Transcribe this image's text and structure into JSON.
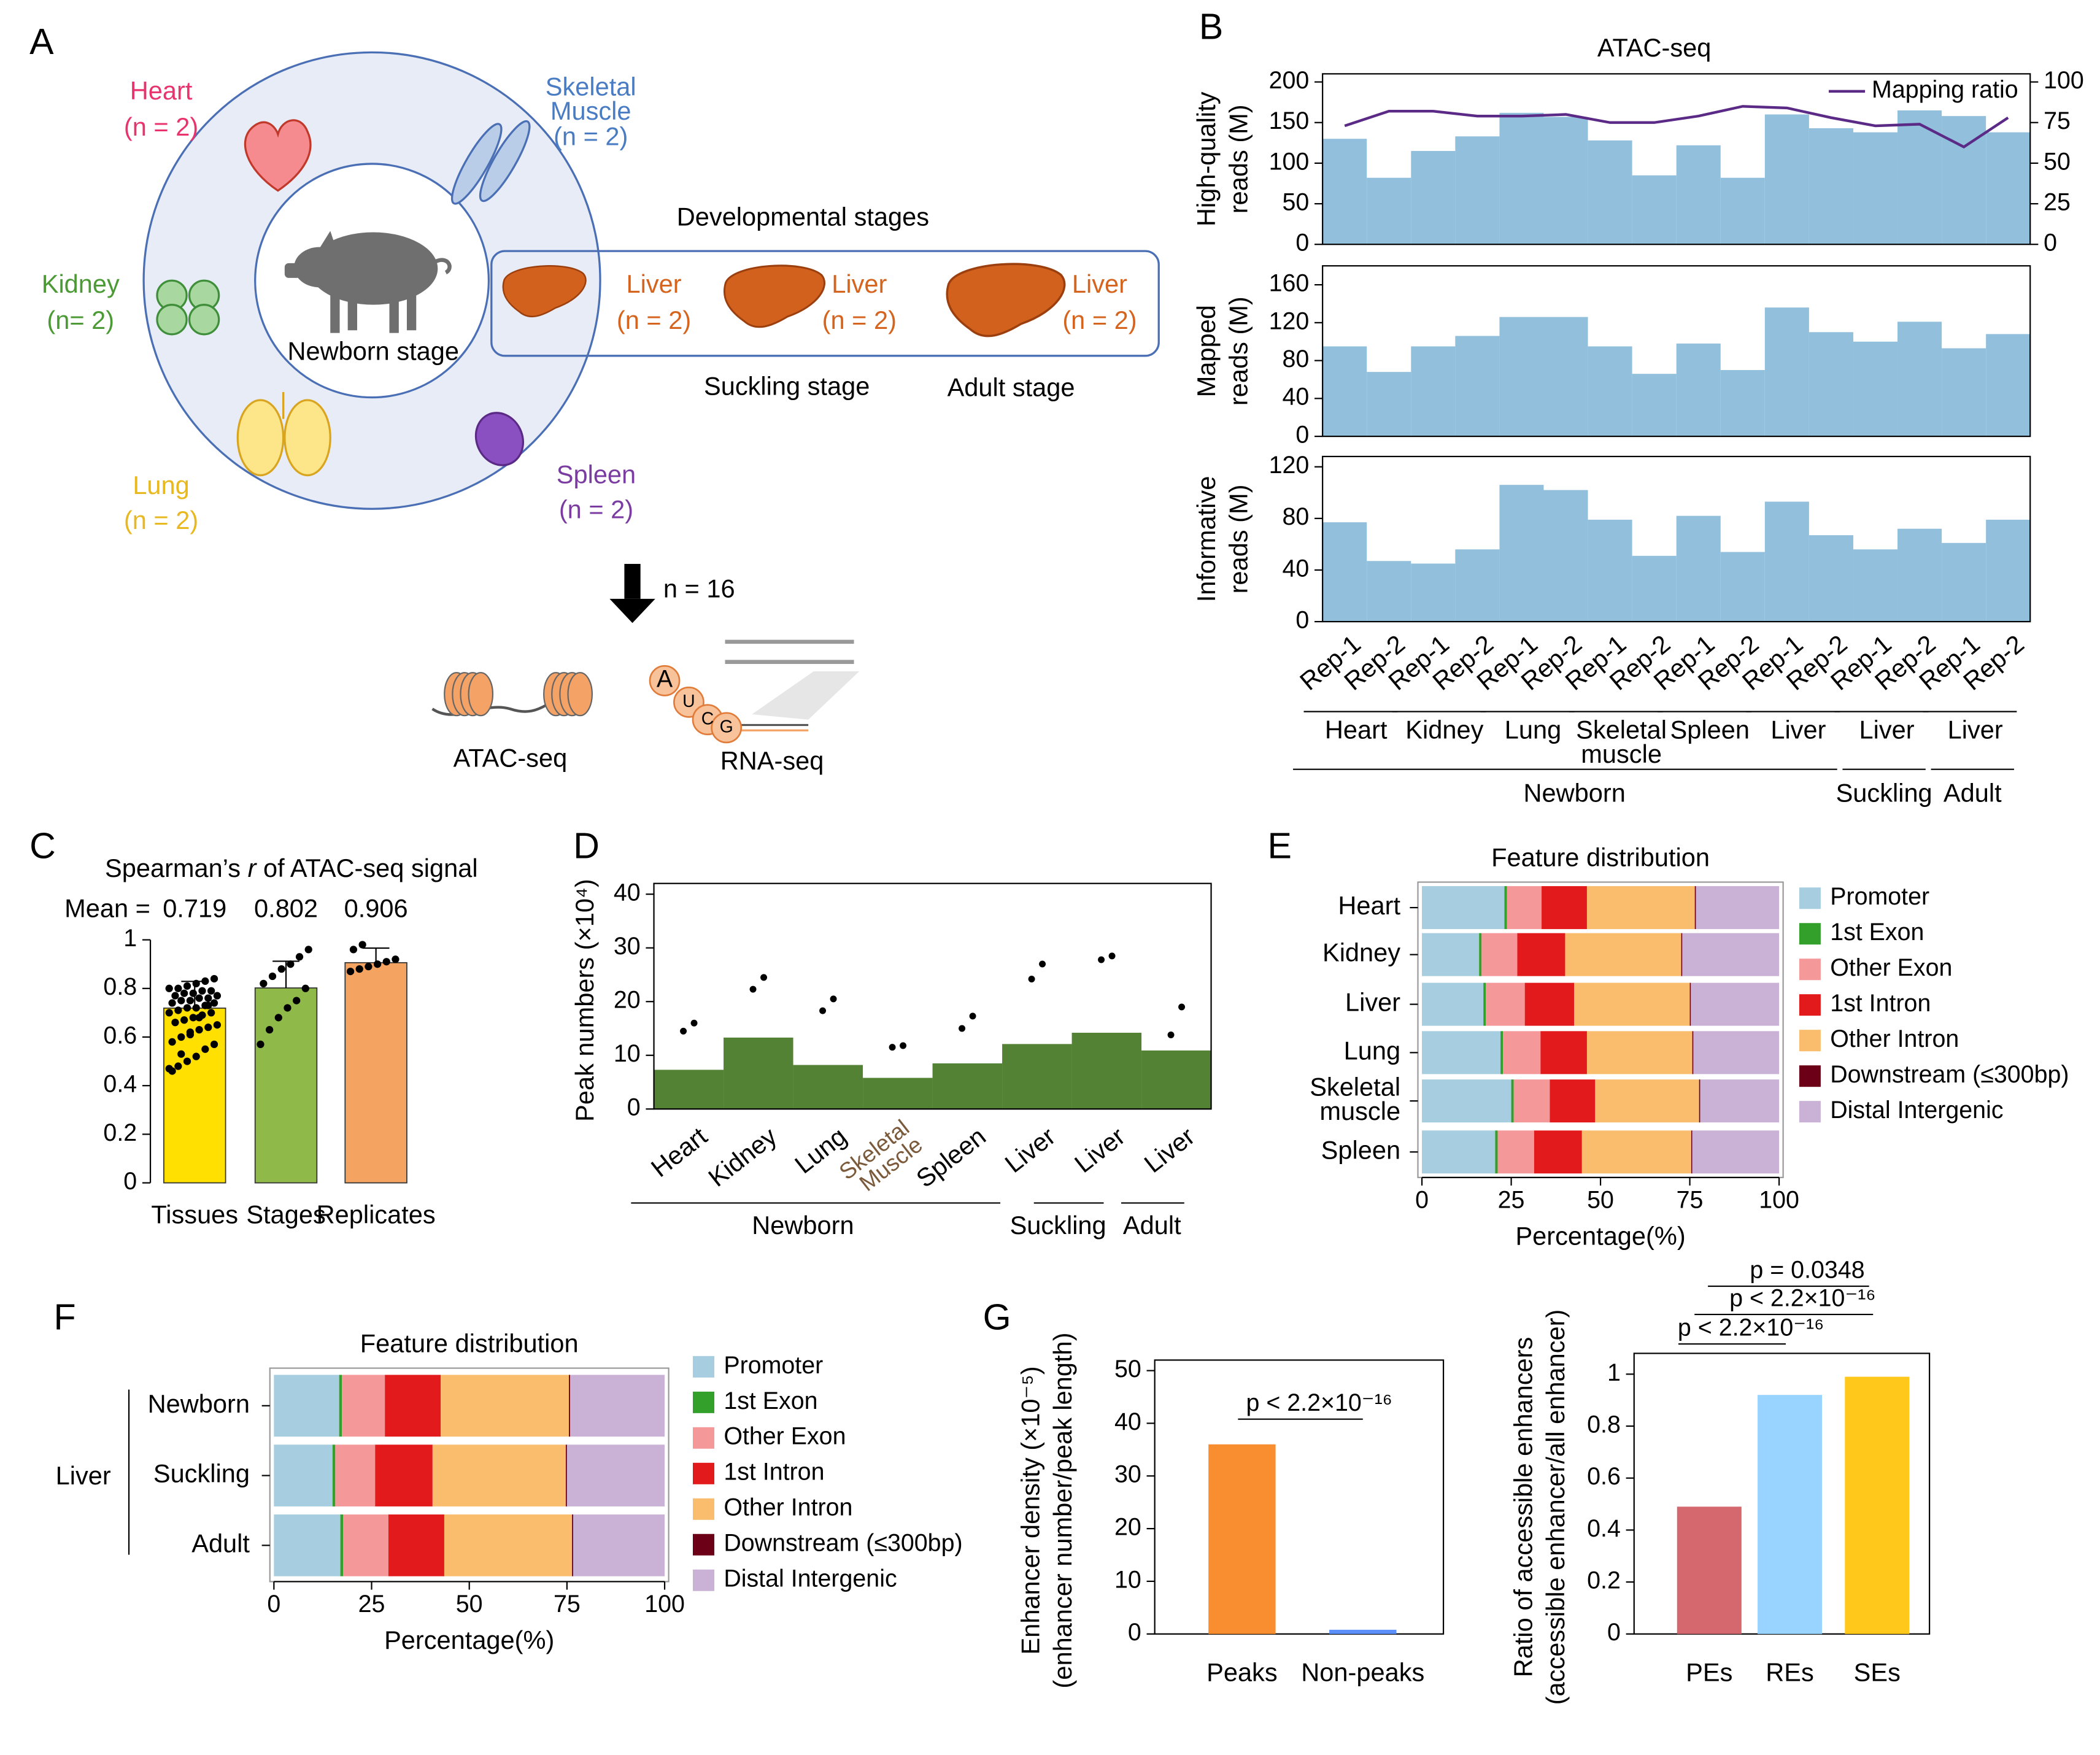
{
  "panel_labels": [
    "A",
    "B",
    "C",
    "D",
    "E",
    "F",
    "G"
  ],
  "diagram": {
    "organs": [
      {
        "name": "Heart",
        "n": "(n = 2)"
      },
      {
        "name": [
          "Skeletal",
          "Muscle"
        ],
        "n": "(n = 2)"
      },
      {
        "name": "Kidney",
        "n": "(n= 2)"
      },
      {
        "name": "Lung",
        "n": "(n = 2)"
      },
      {
        "name": "Spleen",
        "n": "(n = 2)"
      }
    ],
    "center": "Newborn stage",
    "stages_title": "Developmental stages",
    "livers": [
      {
        "name": "Liver",
        "n": "(n = 2)"
      },
      {
        "name": "Liver",
        "n": "(n = 2)"
      },
      {
        "name": "Liver",
        "n": "(n = 2)"
      }
    ],
    "stage_labels": [
      "Suckling stage",
      "Adult stage"
    ],
    "total": "n = 16",
    "assays": [
      "ATAC-seq",
      "RNA-seq"
    ],
    "nucleotides": [
      "A",
      "U",
      "C",
      "G"
    ]
  },
  "chart_data": [
    {
      "type": "bar",
      "title": "ATAC-seq",
      "categories": [
        "Rep-1",
        "Rep-2",
        "Rep-1",
        "Rep-2",
        "Rep-1",
        "Rep-2",
        "Rep-1",
        "Rep-2",
        "Rep-1",
        "Rep-2",
        "Rep-1",
        "Rep-2",
        "Rep-1",
        "Rep-2",
        "Rep-1",
        "Rep-2"
      ],
      "tissue_groups": [
        "Heart",
        "Kidney",
        "Lung",
        [
          "Skeletal",
          "muscle"
        ],
        "Spleen",
        "Liver",
        "Liver",
        "Liver"
      ],
      "stage_groups": [
        "Newborn",
        "Suckling",
        "Adult"
      ],
      "color": "#92c0dc",
      "subplots": [
        {
          "ylabel": [
            "High-quality",
            "reads (M)"
          ],
          "ylim": [
            0,
            210
          ],
          "yticks": [
            0,
            50,
            100,
            150,
            200
          ],
          "values": [
            130,
            82,
            115,
            133,
            162,
            157,
            128,
            85,
            122,
            82,
            160,
            143,
            138,
            165,
            158,
            138
          ],
          "y2lim": [
            0,
            105
          ],
          "y2ticks": [
            0,
            25,
            50,
            75,
            100
          ],
          "legend": "upper right",
          "line": {
            "name": "Mapping ratio",
            "color": "#5b2a86",
            "axis": "y2",
            "values": [
              73,
              82,
              82,
              79,
              79,
              80,
              75,
              75,
              79,
              85,
              84,
              78,
              73,
              74,
              60,
              78
            ]
          }
        },
        {
          "ylabel": [
            "Mapped",
            "reads (M)"
          ],
          "ylim": [
            0,
            180
          ],
          "yticks": [
            0,
            40,
            80,
            120,
            160
          ],
          "values": [
            95,
            68,
            95,
            106,
            126,
            126,
            95,
            66,
            98,
            70,
            136,
            110,
            100,
            121,
            93,
            108
          ]
        },
        {
          "ylabel": [
            "Informative",
            "reads (M)"
          ],
          "ylim": [
            0,
            128
          ],
          "yticks": [
            0,
            40,
            80,
            120
          ],
          "values": [
            77,
            47,
            45,
            56,
            106,
            102,
            79,
            51,
            82,
            54,
            93,
            67,
            56,
            72,
            61,
            79
          ]
        }
      ]
    },
    {
      "type": "bar",
      "title": [
        "Spearman’s ",
        "r",
        " of ATAC-seq signal"
      ],
      "mean_label": "Mean =",
      "categories": [
        "Tissues",
        "Stages",
        "Replicates"
      ],
      "values": [
        0.719,
        0.802,
        0.906
      ],
      "errors": [
        0.11,
        0.11,
        0.06
      ],
      "colors": [
        "#ffe000",
        "#8fba4a",
        "#f4a460"
      ],
      "points": [
        [
          0.47,
          0.48,
          0.5,
          0.52,
          0.55,
          0.57,
          0.58,
          0.6,
          0.62,
          0.63,
          0.64,
          0.65,
          0.66,
          0.67,
          0.68,
          0.69,
          0.7,
          0.7,
          0.71,
          0.72,
          0.72,
          0.73,
          0.74,
          0.74,
          0.75,
          0.75,
          0.76,
          0.76,
          0.77,
          0.77,
          0.78,
          0.78,
          0.79,
          0.79,
          0.8,
          0.8,
          0.81,
          0.82,
          0.83,
          0.84,
          0.46,
          0.53,
          0.61,
          0.68,
          0.73
        ],
        [
          0.57,
          0.63,
          0.68,
          0.72,
          0.75,
          0.8,
          0.82,
          0.85,
          0.88,
          0.9,
          0.93,
          0.96
        ],
        [
          0.87,
          0.88,
          0.89,
          0.9,
          0.91,
          0.92,
          0.96,
          0.98
        ]
      ],
      "ylim": [
        0,
        1
      ],
      "yticks": [
        0,
        0.2,
        0.4,
        0.6,
        0.8,
        1
      ]
    },
    {
      "type": "bar",
      "ylabel": "Peak numbers (×10⁴)",
      "categories": [
        "Heart",
        "Kidney",
        "Lung",
        [
          "Skeletal",
          "Muscle"
        ],
        "Spleen",
        "Liver",
        "Liver",
        "Liver"
      ],
      "values": [
        7.3,
        13.3,
        8.2,
        5.8,
        8.5,
        12.1,
        14.2,
        10.9
      ],
      "points": [
        [
          14.5,
          16
        ],
        [
          22.3,
          24.5
        ],
        [
          18.3,
          20.5
        ],
        [
          11.5,
          11.8
        ],
        [
          15,
          17.3
        ],
        [
          24.2,
          27
        ],
        [
          27.8,
          28.5
        ],
        [
          13.8,
          19
        ]
      ],
      "color": "#548235",
      "ylim": [
        0,
        42
      ],
      "yticks": [
        0,
        10,
        20,
        30,
        40
      ],
      "stage_groups": [
        "Newborn",
        "Suckling",
        "Adult"
      ]
    },
    {
      "type": "stacked_barh",
      "title": "Feature distribution",
      "xlabel": "Percentage(%)",
      "categories": [
        "Heart",
        "Kidney",
        "Liver",
        "Lung",
        [
          "Skeletal",
          "muscle"
        ],
        "Spleen"
      ],
      "series": [
        {
          "name": "Promoter",
          "color": "#a6cde0",
          "values": [
            23.1,
            16,
            17.2,
            22,
            25,
            20.5
          ]
        },
        {
          "name": "1st Exon",
          "color": "#33a02c",
          "values": [
            0.7,
            0.7,
            0.7,
            0.7,
            0.7,
            0.7
          ]
        },
        {
          "name": "Other Exon",
          "color": "#f4989a",
          "values": [
            9.7,
            10,
            10.9,
            10.5,
            10.1,
            10.2
          ]
        },
        {
          "name": "1st Intron",
          "color": "#e31a1c",
          "values": [
            12.7,
            13.4,
            13.8,
            13,
            12.7,
            13.4
          ]
        },
        {
          "name": "Other Intron",
          "color": "#f9bd6d",
          "values": [
            30.2,
            32.5,
            32.4,
            29.5,
            29.1,
            30.6
          ]
        },
        {
          "name": "Downstream (≤300bp)",
          "color": "#6b0016",
          "values": [
            0.3,
            0.3,
            0.3,
            0.3,
            0.3,
            0.3
          ]
        },
        {
          "name": "Distal Intergenic",
          "color": "#c9b2d6",
          "values": [
            23.3,
            27.1,
            24.7,
            24,
            22.1,
            24.3
          ]
        }
      ],
      "xlim": [
        0,
        100
      ],
      "xticks": [
        0,
        25,
        50,
        75,
        100
      ]
    },
    {
      "type": "stacked_barh",
      "title": "Feature distribution",
      "xlabel": "Percentage(%)",
      "group_label": "Liver",
      "categories": [
        "Newborn",
        "Suckling",
        "Adult"
      ],
      "series": [
        {
          "name": "Promoter",
          "color": "#a6cde0",
          "values": [
            16.7,
            15,
            17
          ]
        },
        {
          "name": "1st Exon",
          "color": "#33a02c",
          "values": [
            0.7,
            0.7,
            0.7
          ]
        },
        {
          "name": "Other Exon",
          "color": "#f4989a",
          "values": [
            11,
            10.2,
            11.6
          ]
        },
        {
          "name": "1st Intron",
          "color": "#e31a1c",
          "values": [
            14.3,
            14.7,
            14.3
          ]
        },
        {
          "name": "Other Intron",
          "color": "#f9bd6d",
          "values": [
            32.8,
            34.1,
            32.7
          ]
        },
        {
          "name": "Downstream (≤300bp)",
          "color": "#6b0016",
          "values": [
            0.3,
            0.3,
            0.3
          ]
        },
        {
          "name": "Distal Intergenic",
          "color": "#c9b2d6",
          "values": [
            24.2,
            25,
            23.4
          ]
        }
      ],
      "xlim": [
        0,
        100
      ],
      "xticks": [
        0,
        25,
        50,
        75,
        100
      ]
    },
    {
      "type": "bar",
      "ylabel": [
        "Enhancer density (×10⁻⁵)",
        "(enhancer number/peak length)"
      ],
      "categories": [
        "Peaks",
        "Non-peaks"
      ],
      "values": [
        36,
        0.8
      ],
      "colors": [
        "#f98e30",
        "#5b8ff9"
      ],
      "ylim": [
        0,
        52
      ],
      "yticks": [
        0,
        10,
        20,
        30,
        40,
        50
      ],
      "annotations": [
        "p < 2.2×10⁻¹⁶"
      ]
    },
    {
      "type": "bar",
      "ylabel": [
        "Ratio of accessible enhancers",
        "(accessible enhancer/all enhancer)"
      ],
      "categories": [
        "PEs",
        "REs",
        "SEs"
      ],
      "values": [
        0.49,
        0.92,
        0.99
      ],
      "colors": [
        "#d4686e",
        "#99d3ff",
        "#ffc81a"
      ],
      "ylim": [
        0,
        1.08
      ],
      "yticks": [
        0,
        0.2,
        0.4,
        0.6,
        0.8,
        1
      ],
      "annotations": [
        "p = 0.0348",
        "p < 2.2×10⁻¹⁶",
        "p < 2.2×10⁻¹⁶"
      ]
    }
  ]
}
